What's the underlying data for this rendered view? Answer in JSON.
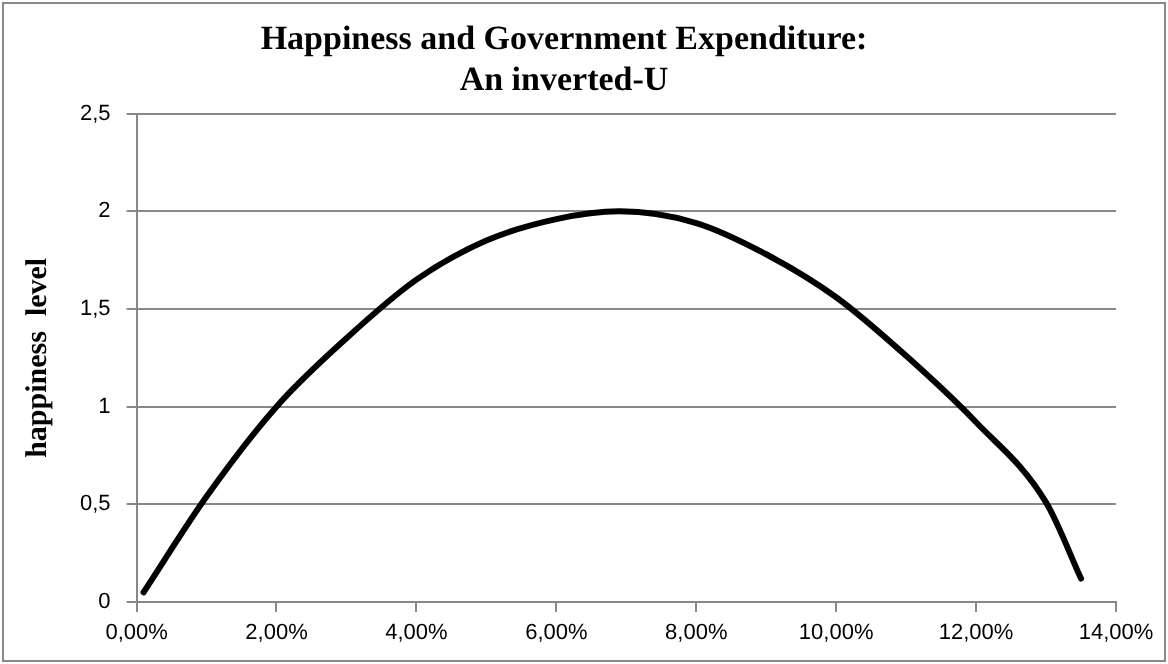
{
  "chart_data": {
    "type": "line",
    "title": [
      "Happiness and Government Expenditure:",
      "An inverted-U"
    ],
    "ylabel": "happiness  level",
    "x": [
      0.1,
      1,
      2,
      3,
      4,
      5,
      6,
      6.9,
      8,
      9,
      10,
      11,
      12,
      13,
      13.5
    ],
    "series": [
      {
        "color": "#000000",
        "values": [
          0.05,
          0.54,
          1.0,
          1.35,
          1.65,
          1.85,
          1.96,
          2.0,
          1.94,
          1.78,
          1.56,
          1.26,
          0.92,
          0.51,
          0.12
        ]
      }
    ],
    "xlim": [
      0,
      14
    ],
    "xticks": [
      {
        "value": 0,
        "label": "0,00%"
      },
      {
        "value": 2,
        "label": "2,00%"
      },
      {
        "value": 4,
        "label": "4,00%"
      },
      {
        "value": 6,
        "label": "6,00%"
      },
      {
        "value": 8,
        "label": "8,00%"
      },
      {
        "value": 10,
        "label": "10,00%"
      },
      {
        "value": 12,
        "label": "12,00%"
      },
      {
        "value": 14,
        "label": "14,00%"
      }
    ],
    "ylim": [
      0,
      2.5
    ],
    "yticks": [
      0,
      {
        "value": 0.5,
        "label": "0,5"
      },
      1,
      {
        "value": 1.5,
        "label": "1,5"
      },
      2,
      {
        "value": 2.5,
        "label": "2,5"
      }
    ],
    "grid": "y",
    "legend": false,
    "marker": "none",
    "line_style": "solid"
  }
}
